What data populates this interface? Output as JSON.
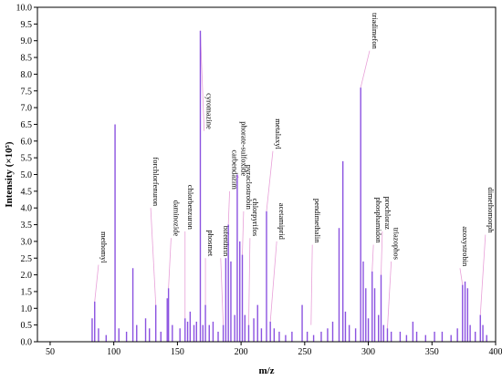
{
  "chart_data": {
    "type": "bar",
    "xlabel": "m/z",
    "ylabel": "Intensity (×10⁵)",
    "xlim": [
      40,
      400
    ],
    "ylim": [
      0,
      10
    ],
    "x_ticks": [
      50,
      100,
      150,
      200,
      250,
      300,
      350,
      400
    ],
    "y_ticks": [
      0.0,
      0.5,
      1.0,
      1.5,
      2.0,
      2.5,
      3.0,
      3.5,
      4.0,
      4.5,
      5.0,
      5.5,
      6.0,
      6.5,
      7.0,
      7.5,
      8.0,
      8.5,
      9.0,
      9.5,
      10.0
    ],
    "grid": false,
    "colors": {
      "bars": "#8b52e0",
      "leader": "#e8a0d8",
      "axis": "#000000"
    },
    "peaks": [
      {
        "x": 83,
        "y": 0.7
      },
      {
        "x": 85,
        "y": 1.2
      },
      {
        "x": 88,
        "y": 0.4
      },
      {
        "x": 94,
        "y": 0.2
      },
      {
        "x": 101,
        "y": 6.5
      },
      {
        "x": 104,
        "y": 0.4
      },
      {
        "x": 110,
        "y": 0.3
      },
      {
        "x": 115,
        "y": 2.2
      },
      {
        "x": 118,
        "y": 0.5
      },
      {
        "x": 125,
        "y": 0.7
      },
      {
        "x": 128,
        "y": 0.4
      },
      {
        "x": 133,
        "y": 1.1
      },
      {
        "x": 137,
        "y": 0.3
      },
      {
        "x": 142,
        "y": 1.3
      },
      {
        "x": 143,
        "y": 1.6
      },
      {
        "x": 146,
        "y": 0.5
      },
      {
        "x": 152,
        "y": 0.4
      },
      {
        "x": 156,
        "y": 0.7
      },
      {
        "x": 158,
        "y": 0.6
      },
      {
        "x": 160,
        "y": 0.9
      },
      {
        "x": 163,
        "y": 0.5
      },
      {
        "x": 165,
        "y": 0.6
      },
      {
        "x": 168,
        "y": 9.3
      },
      {
        "x": 170,
        "y": 0.5
      },
      {
        "x": 172,
        "y": 1.1
      },
      {
        "x": 175,
        "y": 0.5
      },
      {
        "x": 178,
        "y": 0.6
      },
      {
        "x": 182,
        "y": 0.3
      },
      {
        "x": 186,
        "y": 0.5
      },
      {
        "x": 188,
        "y": 2.5
      },
      {
        "x": 190,
        "y": 3.5
      },
      {
        "x": 192,
        "y": 2.4
      },
      {
        "x": 195,
        "y": 0.8
      },
      {
        "x": 197,
        "y": 5.0
      },
      {
        "x": 199,
        "y": 3.0
      },
      {
        "x": 201,
        "y": 2.6
      },
      {
        "x": 203,
        "y": 0.8
      },
      {
        "x": 206,
        "y": 0.5
      },
      {
        "x": 210,
        "y": 0.7
      },
      {
        "x": 213,
        "y": 1.1
      },
      {
        "x": 216,
        "y": 0.4
      },
      {
        "x": 220,
        "y": 3.9
      },
      {
        "x": 223,
        "y": 0.6
      },
      {
        "x": 226,
        "y": 0.4
      },
      {
        "x": 230,
        "y": 0.3
      },
      {
        "x": 235,
        "y": 0.2
      },
      {
        "x": 240,
        "y": 0.3
      },
      {
        "x": 248,
        "y": 1.1
      },
      {
        "x": 252,
        "y": 0.3
      },
      {
        "x": 257,
        "y": 0.2
      },
      {
        "x": 263,
        "y": 0.3
      },
      {
        "x": 268,
        "y": 0.4
      },
      {
        "x": 272,
        "y": 0.6
      },
      {
        "x": 277,
        "y": 3.4
      },
      {
        "x": 280,
        "y": 5.4
      },
      {
        "x": 282,
        "y": 0.9
      },
      {
        "x": 285,
        "y": 0.5
      },
      {
        "x": 290,
        "y": 0.4
      },
      {
        "x": 294,
        "y": 7.6
      },
      {
        "x": 296,
        "y": 2.4
      },
      {
        "x": 298,
        "y": 1.6
      },
      {
        "x": 300,
        "y": 0.7
      },
      {
        "x": 303,
        "y": 2.1
      },
      {
        "x": 305,
        "y": 1.6
      },
      {
        "x": 308,
        "y": 0.8
      },
      {
        "x": 310,
        "y": 2.0
      },
      {
        "x": 312,
        "y": 0.5
      },
      {
        "x": 315,
        "y": 0.4
      },
      {
        "x": 318,
        "y": 0.3
      },
      {
        "x": 325,
        "y": 0.3
      },
      {
        "x": 330,
        "y": 0.2
      },
      {
        "x": 335,
        "y": 0.6
      },
      {
        "x": 338,
        "y": 0.3
      },
      {
        "x": 345,
        "y": 0.2
      },
      {
        "x": 352,
        "y": 0.3
      },
      {
        "x": 358,
        "y": 0.3
      },
      {
        "x": 365,
        "y": 0.2
      },
      {
        "x": 370,
        "y": 0.4
      },
      {
        "x": 374,
        "y": 1.7
      },
      {
        "x": 376,
        "y": 1.8
      },
      {
        "x": 378,
        "y": 1.6
      },
      {
        "x": 380,
        "y": 0.5
      },
      {
        "x": 384,
        "y": 0.3
      },
      {
        "x": 388,
        "y": 0.8
      },
      {
        "x": 390,
        "y": 0.5
      },
      {
        "x": 393,
        "y": 0.2
      }
    ],
    "annotations": [
      {
        "text": "methomyl",
        "x": 85,
        "y": 1.2,
        "label_x": 88,
        "label_y": 2.3
      },
      {
        "text": "forchlorfenuron",
        "x": 133,
        "y": 1.1,
        "label_x": 129,
        "label_y": 4.0
      },
      {
        "text": "daminozide",
        "x": 143,
        "y": 1.6,
        "label_x": 145,
        "label_y": 3.1
      },
      {
        "text": "chlorbenzuron",
        "x": 156,
        "y": 0.7,
        "label_x": 156,
        "label_y": 3.3
      },
      {
        "text": "cyromazine",
        "x": 168,
        "y": 9.3,
        "label_x": 171,
        "label_y": 6.3
      },
      {
        "text": "phosmet",
        "x": 172,
        "y": 1.1,
        "label_x": 172,
        "label_y": 2.5
      },
      {
        "text": "bifenthrin",
        "x": 186,
        "y": 0.5,
        "label_x": 184,
        "label_y": 2.5
      },
      {
        "text": "carbendazim",
        "x": 190,
        "y": 3.5,
        "label_x": 191,
        "label_y": 4.5
      },
      {
        "text": "phorate-sulfoxide",
        "x": 197,
        "y": 5.0,
        "label_x": 198,
        "label_y": 4.9
      },
      {
        "text": "pyraclostrobin",
        "x": 201,
        "y": 2.6,
        "label_x": 202,
        "label_y": 3.9
      },
      {
        "text": "chlorpyrifos",
        "x": 206,
        "y": 0.5,
        "label_x": 207,
        "label_y": 3.1
      },
      {
        "text": "metalaxyl",
        "x": 220,
        "y": 3.9,
        "label_x": 225,
        "label_y": 5.7
      },
      {
        "text": "acetamiprid",
        "x": 223,
        "y": 0.6,
        "label_x": 228,
        "label_y": 3.0
      },
      {
        "text": "pendimethalin",
        "x": 255,
        "y": 0.5,
        "label_x": 256,
        "label_y": 2.9
      },
      {
        "text": "triadimefon",
        "x": 294,
        "y": 7.6,
        "label_x": 301,
        "label_y": 8.7
      },
      {
        "text": "phosphamidon",
        "x": 303,
        "y": 2.1,
        "label_x": 304,
        "label_y": 2.9
      },
      {
        "text": "prochloraz",
        "x": 310,
        "y": 2.0,
        "label_x": 311,
        "label_y": 3.3
      },
      {
        "text": "triazophos",
        "x": 315,
        "y": 0.4,
        "label_x": 318,
        "label_y": 2.4
      },
      {
        "text": "azoxystrobin",
        "x": 374,
        "y": 1.7,
        "label_x": 372,
        "label_y": 2.2
      },
      {
        "text": "dimethomorph",
        "x": 388,
        "y": 0.8,
        "label_x": 392,
        "label_y": 3.2
      }
    ]
  }
}
